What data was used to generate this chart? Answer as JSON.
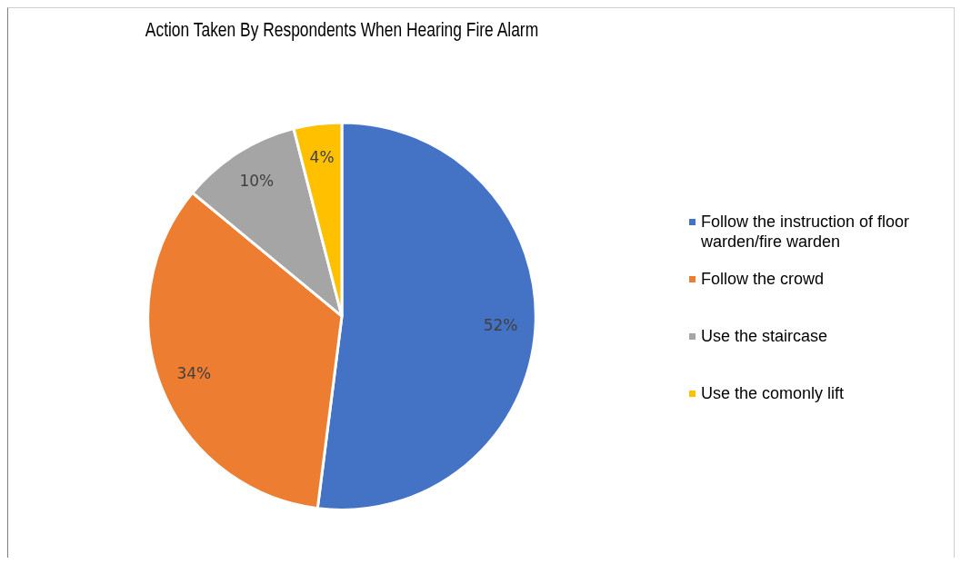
{
  "chart_data": {
    "type": "pie",
    "title": "Action Taken By Respondents When Hearing Fire Alarm",
    "categories": [
      "Follow the instruction of floor warden/fire warden",
      "Follow the crowd",
      "Use the staircase",
      "Use the comonly lift"
    ],
    "values": [
      52,
      34,
      10,
      4
    ],
    "colors": [
      "#4472c4",
      "#ed7d31",
      "#a5a5a5",
      "#ffc000"
    ],
    "value_labels": [
      "52%",
      "34%",
      "10%",
      "4%"
    ],
    "legend": "right"
  }
}
